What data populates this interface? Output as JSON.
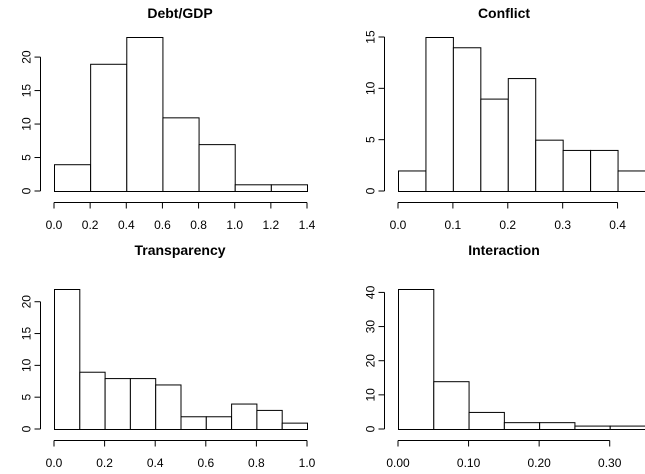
{
  "chart_data": [
    {
      "type": "bar",
      "title": "Debt/GDP",
      "bin_edges": [
        0.0,
        0.2,
        0.4,
        0.6,
        0.8,
        1.0,
        1.2,
        1.4
      ],
      "values": [
        4,
        19,
        23,
        11,
        7,
        1,
        1
      ],
      "xlim": [
        0.0,
        1.4
      ],
      "ylim": [
        0,
        23
      ],
      "x_ticks": [
        0.0,
        0.2,
        0.4,
        0.6,
        0.8,
        1.0,
        1.2,
        1.4
      ],
      "x_tick_labels": [
        "0.0",
        "0.2",
        "0.4",
        "0.6",
        "0.8",
        "1.0",
        "1.2",
        "1.4"
      ],
      "y_ticks": [
        0,
        5,
        10,
        15,
        20
      ],
      "y_tick_labels": [
        "0",
        "5",
        "10",
        "15",
        "20"
      ],
      "grid": false
    },
    {
      "type": "bar",
      "title": "Conflict",
      "bin_edges": [
        0.0,
        0.05,
        0.1,
        0.15,
        0.2,
        0.25,
        0.3,
        0.35,
        0.4,
        0.45
      ],
      "values": [
        2,
        15,
        14,
        9,
        11,
        5,
        4,
        4,
        2
      ],
      "xlim": [
        0.0,
        0.45
      ],
      "ylim": [
        0,
        15
      ],
      "x_ticks": [
        0.0,
        0.1,
        0.2,
        0.3,
        0.4
      ],
      "x_tick_labels": [
        "0.0",
        "0.1",
        "0.2",
        "0.3",
        "0.4"
      ],
      "y_ticks": [
        0,
        5,
        10,
        15
      ],
      "y_tick_labels": [
        "0",
        "5",
        "10",
        "15"
      ],
      "grid": false
    },
    {
      "type": "bar",
      "title": "Transparency",
      "bin_edges": [
        0.0,
        0.1,
        0.2,
        0.3,
        0.4,
        0.5,
        0.6,
        0.7,
        0.8,
        0.9,
        1.0
      ],
      "values": [
        22,
        9,
        8,
        8,
        7,
        2,
        2,
        4,
        3,
        1
      ],
      "xlim": [
        0.0,
        1.0
      ],
      "ylim": [
        0,
        22
      ],
      "x_ticks": [
        0.0,
        0.2,
        0.4,
        0.6,
        0.8,
        1.0
      ],
      "x_tick_labels": [
        "0.0",
        "0.2",
        "0.4",
        "0.6",
        "0.8",
        "1.0"
      ],
      "y_ticks": [
        0,
        5,
        10,
        15,
        20
      ],
      "y_tick_labels": [
        "0",
        "5",
        "10",
        "15",
        "20"
      ],
      "grid": false
    },
    {
      "type": "bar",
      "title": "Interaction",
      "bin_edges": [
        0.0,
        0.05,
        0.1,
        0.15,
        0.2,
        0.25,
        0.3,
        0.35
      ],
      "values": [
        41,
        14,
        5,
        2,
        2,
        1,
        1
      ],
      "xlim": [
        0.0,
        0.35
      ],
      "ylim": [
        0,
        41
      ],
      "x_ticks": [
        0.0,
        0.1,
        0.2,
        0.3
      ],
      "x_tick_labels": [
        "0.00",
        "0.10",
        "0.20",
        "0.30"
      ],
      "y_ticks": [
        0,
        10,
        20,
        30,
        40
      ],
      "y_tick_labels": [
        "0",
        "10",
        "20",
        "30",
        "40"
      ],
      "grid": false
    }
  ]
}
